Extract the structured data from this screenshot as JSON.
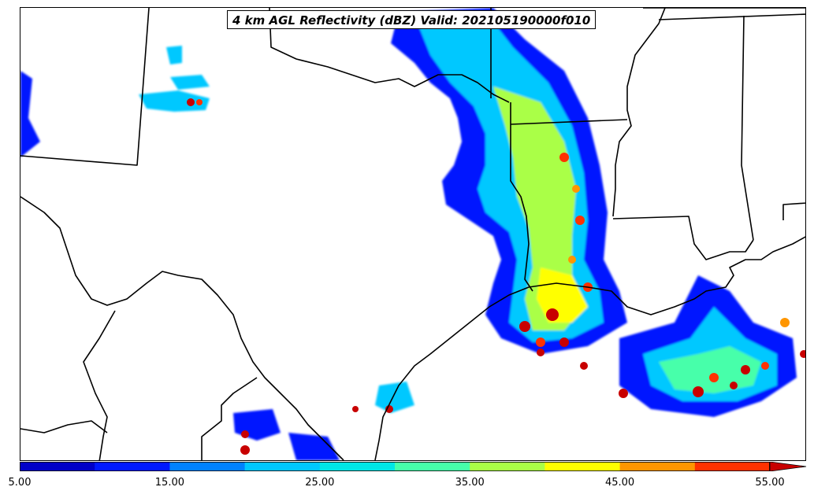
{
  "title": "4 km AGL Reflectivity (dBZ) Valid: 202105190000f010",
  "colorbar": {
    "min": 5,
    "max": 55,
    "step": 5,
    "extend": "max",
    "colors": [
      "#0000c8",
      "#0019ff",
      "#0082ff",
      "#00c8ff",
      "#00e6e6",
      "#46ffaa",
      "#aaff46",
      "#ffff00",
      "#ff9600",
      "#ff3200",
      "#c80000",
      "#960000"
    ],
    "tick_labels": [
      "5.00",
      "15.00",
      "25.00",
      "35.00",
      "45.00",
      "55.00"
    ]
  }
}
